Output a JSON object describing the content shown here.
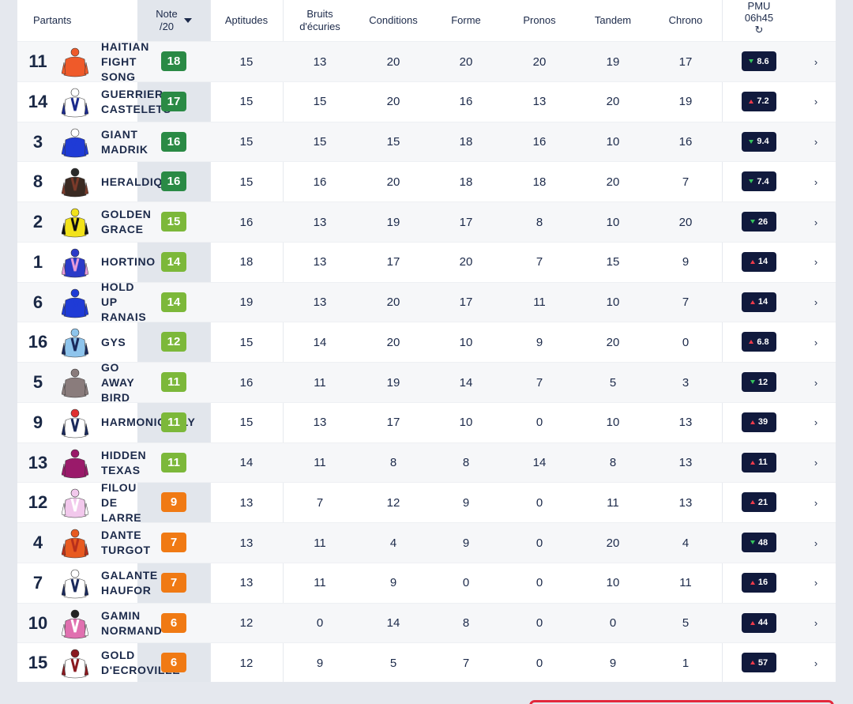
{
  "header": {
    "partants": "Partants",
    "note_line1": "Note",
    "note_line2": "/20",
    "aptitudes": "Aptitudes",
    "bruits_line1": "Bruits",
    "bruits_line2": "d'écuries",
    "conditions": "Conditions",
    "forme": "Forme",
    "pronos": "Pronos",
    "tandem": "Tandem",
    "chrono": "Chrono",
    "pmu_line1": "PMU",
    "pmu_line2": "06h45",
    "refresh_icon": "refresh-icon"
  },
  "colors": {
    "note_dark_green": "#2a8a45",
    "note_light_green": "#7cb83a",
    "note_orange": "#f07a14",
    "pmu_badge": "#111a3d",
    "trend_up": "#ef3a4a",
    "trend_down": "#34c45c"
  },
  "rows": [
    {
      "num": "11",
      "name": [
        "HAITIAN",
        "FIGHT",
        "SONG"
      ],
      "note": "18",
      "apt": "15",
      "bruits": "13",
      "cond": "20",
      "forme": "20",
      "pronos": "20",
      "tandem": "19",
      "chrono": "17",
      "pmu": "8.6",
      "trend": "down",
      "level": "dark",
      "silk": [
        "#ef5a2a",
        "#ef5a2a",
        "#ef5a2a"
      ]
    },
    {
      "num": "14",
      "name": [
        "GUERRIER",
        "CASTELETS"
      ],
      "note": "17",
      "apt": "15",
      "bruits": "15",
      "cond": "20",
      "forme": "16",
      "pronos": "13",
      "tandem": "20",
      "chrono": "19",
      "pmu": "7.2",
      "trend": "up",
      "level": "dark",
      "silk": [
        "#ffffff",
        "#1b2a8c",
        "#ffffff"
      ]
    },
    {
      "num": "3",
      "name": [
        "GIANT",
        "MADRIK"
      ],
      "note": "16",
      "apt": "15",
      "bruits": "15",
      "cond": "15",
      "forme": "18",
      "pronos": "16",
      "tandem": "10",
      "chrono": "16",
      "pmu": "9.4",
      "trend": "down",
      "level": "dark",
      "silk": [
        "#1f3bd6",
        "#1f3bd6",
        "#ffffff"
      ]
    },
    {
      "num": "8",
      "name": [
        "HERALDIQ"
      ],
      "note": "16",
      "apt": "15",
      "bruits": "16",
      "cond": "20",
      "forme": "18",
      "pronos": "18",
      "tandem": "20",
      "chrono": "7",
      "pmu": "7.4",
      "trend": "down",
      "level": "dark",
      "silk": [
        "#3a2a22",
        "#7a3a2a",
        "#2a2a2a"
      ]
    },
    {
      "num": "2",
      "name": [
        "GOLDEN",
        "GRACE"
      ],
      "note": "15",
      "apt": "16",
      "bruits": "13",
      "cond": "19",
      "forme": "17",
      "pronos": "8",
      "tandem": "10",
      "chrono": "20",
      "pmu": "26",
      "trend": "down",
      "level": "light",
      "silk": [
        "#f2e21a",
        "#111111",
        "#f2e21a"
      ]
    },
    {
      "num": "1",
      "name": [
        "HORTINO"
      ],
      "note": "14",
      "apt": "18",
      "bruits": "13",
      "cond": "17",
      "forme": "20",
      "pronos": "7",
      "tandem": "15",
      "chrono": "9",
      "pmu": "14",
      "trend": "up",
      "level": "light",
      "silk": [
        "#2a3ac8",
        "#e59ad8",
        "#2a3ac8"
      ]
    },
    {
      "num": "6",
      "name": [
        "HOLD",
        "UP",
        "RANAIS"
      ],
      "note": "14",
      "apt": "19",
      "bruits": "13",
      "cond": "20",
      "forme": "17",
      "pronos": "11",
      "tandem": "10",
      "chrono": "7",
      "pmu": "14",
      "trend": "up",
      "level": "light",
      "silk": [
        "#1f3bd6",
        "#1f3bd6",
        "#1f3bd6"
      ]
    },
    {
      "num": "16",
      "name": [
        "GYS"
      ],
      "note": "12",
      "apt": "15",
      "bruits": "14",
      "cond": "20",
      "forme": "10",
      "pronos": "9",
      "tandem": "20",
      "chrono": "0",
      "pmu": "6.8",
      "trend": "up",
      "level": "light",
      "silk": [
        "#8ec4ec",
        "#1b2a5c",
        "#8ec4ec"
      ]
    },
    {
      "num": "5",
      "name": [
        "GO",
        "AWAY",
        "BIRD"
      ],
      "note": "11",
      "apt": "16",
      "bruits": "11",
      "cond": "19",
      "forme": "14",
      "pronos": "7",
      "tandem": "5",
      "chrono": "3",
      "pmu": "12",
      "trend": "down",
      "level": "light",
      "silk": [
        "#8a7c7c",
        "#8a7c7c",
        "#8a7c7c"
      ]
    },
    {
      "num": "9",
      "name": [
        "HARMONICALLY"
      ],
      "note": "11",
      "apt": "15",
      "bruits": "13",
      "cond": "17",
      "forme": "10",
      "pronos": "0",
      "tandem": "10",
      "chrono": "13",
      "pmu": "39",
      "trend": "up",
      "level": "light",
      "silk": [
        "#ffffff",
        "#1b2a5c",
        "#e03030"
      ]
    },
    {
      "num": "13",
      "name": [
        "HIDDEN",
        "TEXAS"
      ],
      "note": "11",
      "apt": "14",
      "bruits": "11",
      "cond": "8",
      "forme": "8",
      "pronos": "14",
      "tandem": "8",
      "chrono": "13",
      "pmu": "11",
      "trend": "up",
      "level": "light",
      "silk": [
        "#9a1a6a",
        "#9a1a6a",
        "#9a1a6a"
      ]
    },
    {
      "num": "12",
      "name": [
        "FILOU",
        "DE",
        "LARRE"
      ],
      "note": "9",
      "apt": "13",
      "bruits": "7",
      "cond": "12",
      "forme": "9",
      "pronos": "0",
      "tandem": "11",
      "chrono": "13",
      "pmu": "21",
      "trend": "up",
      "level": "orange",
      "silk": [
        "#f2c8ec",
        "#ffffff",
        "#f2c8ec"
      ]
    },
    {
      "num": "4",
      "name": [
        "DANTE",
        "TURGOT"
      ],
      "note": "7",
      "apt": "13",
      "bruits": "11",
      "cond": "4",
      "forme": "9",
      "pronos": "0",
      "tandem": "20",
      "chrono": "4",
      "pmu": "48",
      "trend": "down",
      "level": "orange",
      "silk": [
        "#e85a20",
        "#b8301c",
        "#e85a20"
      ]
    },
    {
      "num": "7",
      "name": [
        "GALANTE",
        "HAUFOR"
      ],
      "note": "7",
      "apt": "13",
      "bruits": "11",
      "cond": "9",
      "forme": "0",
      "pronos": "0",
      "tandem": "10",
      "chrono": "11",
      "pmu": "16",
      "trend": "up",
      "level": "orange",
      "silk": [
        "#ffffff",
        "#1b2a5c",
        "#ffffff"
      ]
    },
    {
      "num": "10",
      "name": [
        "GAMIN",
        "NORMAND"
      ],
      "note": "6",
      "apt": "12",
      "bruits": "0",
      "cond": "14",
      "forme": "8",
      "pronos": "0",
      "tandem": "0",
      "chrono": "5",
      "pmu": "44",
      "trend": "up",
      "level": "orange",
      "silk": [
        "#e070b0",
        "#ffffff",
        "#222222"
      ]
    },
    {
      "num": "15",
      "name": [
        "GOLD",
        "D'ECROVILLE"
      ],
      "note": "6",
      "apt": "12",
      "bruits": "9",
      "cond": "5",
      "forme": "7",
      "pronos": "0",
      "tandem": "9",
      "chrono": "1",
      "pmu": "57",
      "trend": "up",
      "level": "orange",
      "silk": [
        "#ffffff",
        "#8a1a20",
        "#8a1a20"
      ]
    }
  ]
}
